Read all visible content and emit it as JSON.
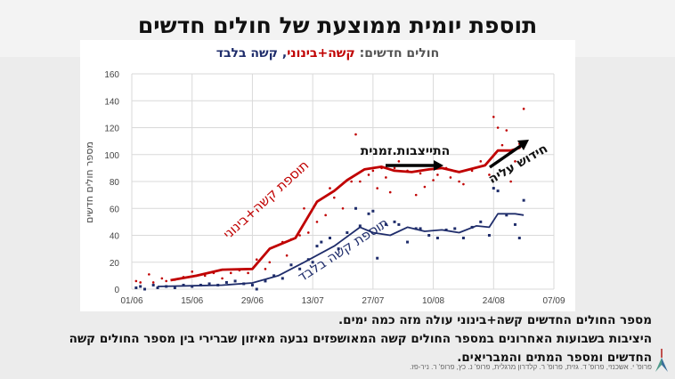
{
  "slide": {
    "title": "תוספת יומית ממוצעת של חולים חדשים",
    "notes": [
      "מספר החולים החדשים קשה+בינוני עולה מזה כמה ימים.",
      "היציבות בשבועות האחרונים במספר החולים קשה המאושפזים נבעה מאיזון שברירי בין  מספר החולים קשה החדשים ומספר המתים והמבריאים."
    ],
    "credit": "פרופ' י. אשכנזי, פרופ' ד. גזית, פרופ' ר. קלדרון מרגלית, פרופ' נ. כץ, פרופ' ר. ניר-פז."
  },
  "chart_data": {
    "type": "line",
    "title_parts": {
      "prefix": "חולים חדשים: ",
      "red": "קשה+בינוני",
      "sep": ", ",
      "navy": "קשה בלבד"
    },
    "ylabel": "מספר חולים חדשים",
    "xlabel": "",
    "ylim": [
      0,
      160
    ],
    "yticks": [
      0,
      20,
      40,
      60,
      80,
      100,
      120,
      140,
      160
    ],
    "xlim": [
      "01/06",
      "07/09"
    ],
    "xticks": [
      "01/06",
      "15/06",
      "29/06",
      "13/07",
      "27/07",
      "10/08",
      "24/08",
      "07/09"
    ],
    "grid": true,
    "colors": {
      "severe_moderate": "#c00000",
      "severe": "#1f2d6b"
    },
    "series": [
      {
        "key": "severe_moderate",
        "kind": "line",
        "points": [
          [
            "10/06",
            6.6
          ],
          [
            "16/06",
            10
          ],
          [
            "22/06",
            14.5
          ],
          [
            "29/06",
            15
          ],
          [
            "03/07",
            30
          ],
          [
            "09/07",
            38
          ],
          [
            "14/07",
            65
          ],
          [
            "18/07",
            73
          ],
          [
            "21/07",
            81
          ],
          [
            "25/07",
            89
          ],
          [
            "29/07",
            91
          ],
          [
            "01/08",
            88
          ],
          [
            "05/08",
            87
          ],
          [
            "09/08",
            89
          ],
          [
            "12/08",
            90
          ],
          [
            "16/08",
            87
          ],
          [
            "22/08",
            92
          ],
          [
            "25/08",
            103
          ],
          [
            "28/08",
            103
          ],
          [
            "30/08",
            105
          ],
          [
            "31/08",
            110
          ]
        ]
      },
      {
        "key": "severe",
        "kind": "line",
        "points": [
          [
            "07/06",
            2
          ],
          [
            "15/06",
            2.5
          ],
          [
            "22/06",
            3
          ],
          [
            "29/06",
            4.6
          ],
          [
            "05/07",
            10
          ],
          [
            "11/07",
            20
          ],
          [
            "18/07",
            32
          ],
          [
            "24/07",
            46
          ],
          [
            "27/07",
            42
          ],
          [
            "31/07",
            40
          ],
          [
            "04/08",
            46
          ],
          [
            "08/08",
            43
          ],
          [
            "12/08",
            44
          ],
          [
            "16/08",
            42
          ],
          [
            "20/08",
            47
          ],
          [
            "23/08",
            46
          ],
          [
            "25/08",
            56
          ],
          [
            "29/08",
            56
          ],
          [
            "31/08",
            55
          ]
        ]
      },
      {
        "key": "severe_moderate",
        "kind": "scatter",
        "points": [
          [
            "02/06",
            6
          ],
          [
            "03/06",
            5
          ],
          [
            "05/06",
            11
          ],
          [
            "06/06",
            5
          ],
          [
            "08/06",
            8
          ],
          [
            "09/06",
            6
          ],
          [
            "11/06",
            7
          ],
          [
            "13/06",
            9
          ],
          [
            "15/06",
            13
          ],
          [
            "16/06",
            10
          ],
          [
            "18/06",
            10
          ],
          [
            "20/06",
            12
          ],
          [
            "22/06",
            8
          ],
          [
            "24/06",
            12
          ],
          [
            "26/06",
            14
          ],
          [
            "28/06",
            12
          ],
          [
            "30/06",
            22
          ],
          [
            "02/07",
            15
          ],
          [
            "03/07",
            20
          ],
          [
            "04/07",
            10
          ],
          [
            "06/07",
            35
          ],
          [
            "07/07",
            25
          ],
          [
            "08/07",
            37
          ],
          [
            "10/07",
            40
          ],
          [
            "11/07",
            60
          ],
          [
            "12/07",
            42
          ],
          [
            "14/07",
            50
          ],
          [
            "16/07",
            55
          ],
          [
            "17/07",
            75
          ],
          [
            "18/07",
            68
          ],
          [
            "20/07",
            60
          ],
          [
            "22/07",
            80
          ],
          [
            "23/07",
            115
          ],
          [
            "24/07",
            80
          ],
          [
            "26/07",
            85
          ],
          [
            "27/07",
            88
          ],
          [
            "28/07",
            75
          ],
          [
            "29/07",
            90
          ],
          [
            "30/07",
            83
          ],
          [
            "31/07",
            72
          ],
          [
            "01/08",
            90
          ],
          [
            "02/08",
            95
          ],
          [
            "04/08",
            88
          ],
          [
            "06/08",
            70
          ],
          [
            "07/08",
            86
          ],
          [
            "08/08",
            76
          ],
          [
            "10/08",
            81
          ],
          [
            "11/08",
            85
          ],
          [
            "13/08",
            90
          ],
          [
            "14/08",
            83
          ],
          [
            "16/08",
            80
          ],
          [
            "17/08",
            78
          ],
          [
            "19/08",
            88
          ],
          [
            "21/08",
            95
          ],
          [
            "23/08",
            85
          ],
          [
            "24/08",
            128
          ],
          [
            "25/08",
            120
          ],
          [
            "26/08",
            107
          ],
          [
            "27/08",
            118
          ],
          [
            "28/08",
            80
          ],
          [
            "29/08",
            95
          ],
          [
            "30/08",
            108
          ],
          [
            "31/08",
            134
          ]
        ]
      },
      {
        "key": "severe",
        "kind": "scatter",
        "points": [
          [
            "02/06",
            1
          ],
          [
            "03/06",
            2
          ],
          [
            "04/06",
            0
          ],
          [
            "06/06",
            3
          ],
          [
            "07/06",
            1
          ],
          [
            "09/06",
            2
          ],
          [
            "11/06",
            1
          ],
          [
            "13/06",
            3
          ],
          [
            "15/06",
            2
          ],
          [
            "17/06",
            3
          ],
          [
            "19/06",
            4
          ],
          [
            "21/06",
            3
          ],
          [
            "23/06",
            5
          ],
          [
            "25/06",
            6
          ],
          [
            "27/06",
            4
          ],
          [
            "29/06",
            3
          ],
          [
            "30/06",
            0
          ],
          [
            "02/07",
            6
          ],
          [
            "04/07",
            10
          ],
          [
            "06/07",
            8
          ],
          [
            "08/07",
            18
          ],
          [
            "10/07",
            15
          ],
          [
            "12/07",
            22
          ],
          [
            "13/07",
            20
          ],
          [
            "14/07",
            32
          ],
          [
            "15/07",
            35
          ],
          [
            "17/07",
            38
          ],
          [
            "19/07",
            30
          ],
          [
            "21/07",
            42
          ],
          [
            "23/07",
            60
          ],
          [
            "24/07",
            47
          ],
          [
            "26/07",
            56
          ],
          [
            "27/07",
            58
          ],
          [
            "28/07",
            23
          ],
          [
            "30/07",
            48
          ],
          [
            "01/08",
            50
          ],
          [
            "02/08",
            48
          ],
          [
            "04/08",
            35
          ],
          [
            "06/08",
            45
          ],
          [
            "07/08",
            45
          ],
          [
            "09/08",
            40
          ],
          [
            "11/08",
            38
          ],
          [
            "13/08",
            44
          ],
          [
            "15/08",
            45
          ],
          [
            "17/08",
            38
          ],
          [
            "19/08",
            46
          ],
          [
            "21/08",
            50
          ],
          [
            "23/08",
            40
          ],
          [
            "24/08",
            75
          ],
          [
            "25/08",
            73
          ],
          [
            "27/08",
            55
          ],
          [
            "29/08",
            48
          ],
          [
            "30/08",
            38
          ],
          [
            "31/08",
            66
          ]
        ]
      }
    ],
    "annotations": {
      "severe_moderate_label": "תוספת קשה+בינוני",
      "severe_label": "תוספת קשה בלבד",
      "plateau_label": "התייצבות.זמנית",
      "renewed_rise_label": "חידוש עליה"
    }
  }
}
